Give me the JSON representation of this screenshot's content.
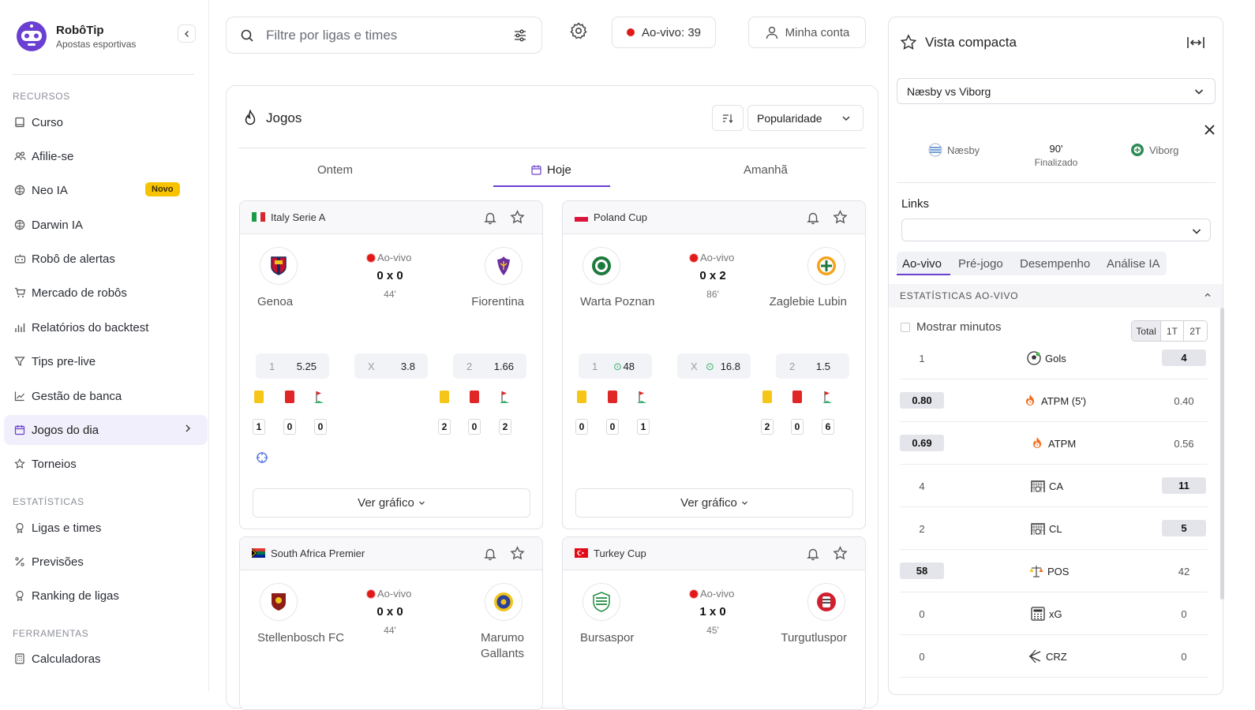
{
  "brand": {
    "name": "RobôTip",
    "subtitle": "Apostas esportivas"
  },
  "sidebar": {
    "sections": [
      "RECURSOS",
      "ESTATÍSTICAS",
      "FERRAMENTAS"
    ],
    "items": [
      {
        "label": "Curso",
        "icon": "book-icon"
      },
      {
        "label": "Afilie-se",
        "icon": "users-icon"
      },
      {
        "label": "Neo IA",
        "icon": "brain-icon",
        "badge": "Novo"
      },
      {
        "label": "Darwin IA",
        "icon": "brain-icon"
      },
      {
        "label": "Robô de alertas",
        "icon": "robot-icon"
      },
      {
        "label": "Mercado de robôs",
        "icon": "cart-icon"
      },
      {
        "label": "Relatórios do backtest",
        "icon": "bar-chart-icon"
      },
      {
        "label": "Tips pre-live",
        "icon": "filter-icon"
      },
      {
        "label": "Gestão de banca",
        "icon": "line-chart-icon"
      },
      {
        "label": "Jogos do dia",
        "icon": "calendar-icon",
        "active": true
      },
      {
        "label": "Torneios",
        "icon": "trophy-icon"
      },
      {
        "label": "Ligas e times",
        "icon": "medal-icon"
      },
      {
        "label": "Previsões",
        "icon": "percent-icon"
      },
      {
        "label": "Ranking de ligas",
        "icon": "award-icon"
      },
      {
        "label": "Calculadoras",
        "icon": "calculator-icon"
      }
    ]
  },
  "topbar": {
    "search_placeholder": "Filtre por ligas e times",
    "live_label": "Ao-vivo: 39",
    "account_label": "Minha conta"
  },
  "games": {
    "title": "Jogos",
    "sort_value": "Popularidade",
    "tabs": [
      "Ontem",
      "Hoje",
      "Amanhã"
    ],
    "ver_grafico": "Ver gráfico",
    "cards": [
      {
        "league": "Italy Serie A",
        "status": "Ao-vivo",
        "home": "Genoa",
        "away": "Fiorentina",
        "score": "0 x 0",
        "minute": "44'",
        "odds": [
          {
            "label": "1",
            "value": "5.25"
          },
          {
            "label": "X",
            "value": "3.8"
          },
          {
            "label": "2",
            "value": "1.66"
          }
        ],
        "home_counts": [
          "1",
          "0",
          "0"
        ],
        "away_counts": [
          "2",
          "0",
          "2"
        ]
      },
      {
        "league": "Poland Cup",
        "status": "Ao-vivo",
        "home": "Warta Poznan",
        "away": "Zaglebie Lubin",
        "score": "0 x 2",
        "minute": "86'",
        "odds": [
          {
            "label": "1",
            "value": "48"
          },
          {
            "label": "X",
            "value": "16.8"
          },
          {
            "label": "2",
            "value": "1.5"
          }
        ],
        "home_counts": [
          "0",
          "0",
          "1"
        ],
        "away_counts": [
          "2",
          "0",
          "6"
        ]
      },
      {
        "league": "South Africa Premier",
        "status": "Ao-vivo",
        "home": "Stellenbosch FC",
        "away": "Marumo Gallants",
        "score": "0 x 0",
        "minute": "44'"
      },
      {
        "league": "Turkey Cup",
        "status": "Ao-vivo",
        "home": "Bursaspor",
        "away": "Turgutluspor",
        "score": "1 x 0",
        "minute": "45'"
      }
    ]
  },
  "panel": {
    "title": "Vista compacta",
    "match_select": "Næsby vs Viborg",
    "home": "Næsby",
    "away": "Viborg",
    "minute": "90'",
    "status": "Finalizado",
    "links_label": "Links",
    "tabs": [
      "Ao-vivo",
      "Pré-jogo",
      "Desempenho",
      "Análise IA"
    ],
    "stats_title": "ESTATÍSTICAS AO-VIVO",
    "show_minutes": "Mostrar minutos",
    "periods": [
      "Total",
      "1T",
      "2T"
    ],
    "rows": [
      {
        "home": "1",
        "label": "Gols",
        "icon": "soccer-ball-icon",
        "away": "4",
        "hl": "away"
      },
      {
        "home": "0.80",
        "label": "ATPM (5')",
        "icon": "fire-clock-icon",
        "away": "0.40",
        "hl": "home"
      },
      {
        "home": "0.69",
        "label": "ATPM",
        "icon": "fire-clock-icon",
        "away": "0.56",
        "hl": "home"
      },
      {
        "home": "4",
        "label": "CA",
        "icon": "goal-net-icon",
        "away": "11",
        "hl": "away"
      },
      {
        "home": "2",
        "label": "CL",
        "icon": "goal-net-icon",
        "away": "5",
        "hl": "away"
      },
      {
        "home": "58",
        "label": "POS",
        "icon": "scales-icon",
        "away": "42",
        "hl": "home"
      },
      {
        "home": "0",
        "label": "xG",
        "icon": "calculator-icon",
        "away": "0",
        "hl": "none"
      },
      {
        "home": "0",
        "label": "CRZ",
        "icon": "cross-arrow-icon",
        "away": "0",
        "hl": "none"
      }
    ]
  },
  "colors": {
    "accent": "#6a3fd1",
    "live": "#e11919",
    "badge": "#f7c300"
  }
}
